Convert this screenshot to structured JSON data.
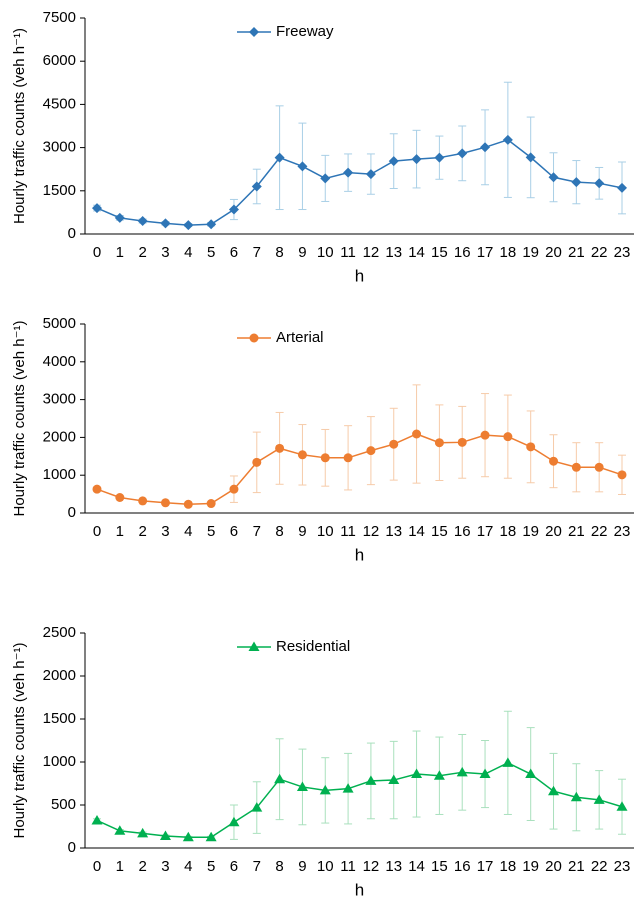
{
  "chart_data": [
    {
      "type": "line",
      "ylabel": "Hourly traffic counts (veh h⁻¹)",
      "xlabel": "h",
      "categories": [
        "0",
        "1",
        "2",
        "3",
        "4",
        "5",
        "6",
        "7",
        "8",
        "9",
        "10",
        "11",
        "12",
        "13",
        "14",
        "15",
        "16",
        "17",
        "18",
        "19",
        "20",
        "21",
        "22",
        "23"
      ],
      "ylim": [
        0,
        7500
      ],
      "yticks": [
        0,
        1500,
        3000,
        4500,
        6000,
        7500
      ],
      "series": [
        {
          "name": "Freeway",
          "color": "#2e75b6",
          "error_color": "#a9cfe6",
          "marker": "diamond",
          "values": [
            900,
            560,
            450,
            370,
            310,
            340,
            850,
            1650,
            2650,
            2350,
            1930,
            2130,
            2080,
            2530,
            2600,
            2650,
            2800,
            3010,
            3270,
            2660,
            1970,
            1800,
            1760,
            1600
          ],
          "errors": [
            100,
            80,
            70,
            60,
            50,
            60,
            350,
            600,
            1800,
            1500,
            800,
            650,
            700,
            950,
            1000,
            750,
            950,
            1300,
            2000,
            1400,
            850,
            750,
            550,
            900
          ]
        }
      ]
    },
    {
      "type": "line",
      "ylabel": "Hourly traffic counts (veh h⁻¹)",
      "xlabel": "h",
      "categories": [
        "0",
        "1",
        "2",
        "3",
        "4",
        "5",
        "6",
        "7",
        "8",
        "9",
        "10",
        "11",
        "12",
        "13",
        "14",
        "15",
        "16",
        "17",
        "18",
        "19",
        "20",
        "21",
        "22",
        "23"
      ],
      "ylim": [
        0,
        5000
      ],
      "yticks": [
        0,
        1000,
        2000,
        3000,
        4000,
        5000
      ],
      "series": [
        {
          "name": "Arterial",
          "color": "#ed7d31",
          "error_color": "#f6cba9",
          "marker": "circle",
          "values": [
            630,
            410,
            320,
            270,
            230,
            250,
            630,
            1340,
            1710,
            1540,
            1460,
            1460,
            1650,
            1820,
            2090,
            1860,
            1870,
            2060,
            2020,
            1750,
            1370,
            1210,
            1210,
            1010
          ],
          "errors": [
            50,
            40,
            30,
            30,
            30,
            30,
            350,
            800,
            950,
            800,
            750,
            850,
            900,
            950,
            1300,
            1000,
            950,
            1100,
            1100,
            950,
            700,
            650,
            650,
            520
          ]
        }
      ]
    },
    {
      "type": "line",
      "ylabel": "Hourly traffic counts (veh h⁻¹)",
      "xlabel": "h",
      "categories": [
        "0",
        "1",
        "2",
        "3",
        "4",
        "5",
        "6",
        "7",
        "8",
        "9",
        "10",
        "11",
        "12",
        "13",
        "14",
        "15",
        "16",
        "17",
        "18",
        "19",
        "20",
        "21",
        "22",
        "23"
      ],
      "ylim": [
        0,
        2500
      ],
      "yticks": [
        0,
        500,
        1000,
        1500,
        2000,
        2500
      ],
      "series": [
        {
          "name": "Residential",
          "color": "#00b050",
          "error_color": "#a9e0bd",
          "marker": "triangle",
          "values": [
            320,
            200,
            170,
            140,
            125,
            125,
            300,
            470,
            800,
            710,
            670,
            690,
            780,
            790,
            860,
            840,
            880,
            860,
            990,
            860,
            660,
            590,
            560,
            480
          ],
          "errors": [
            20,
            15,
            15,
            12,
            10,
            10,
            200,
            300,
            470,
            440,
            380,
            410,
            440,
            450,
            500,
            450,
            440,
            390,
            600,
            540,
            440,
            390,
            340,
            320
          ]
        }
      ]
    }
  ]
}
